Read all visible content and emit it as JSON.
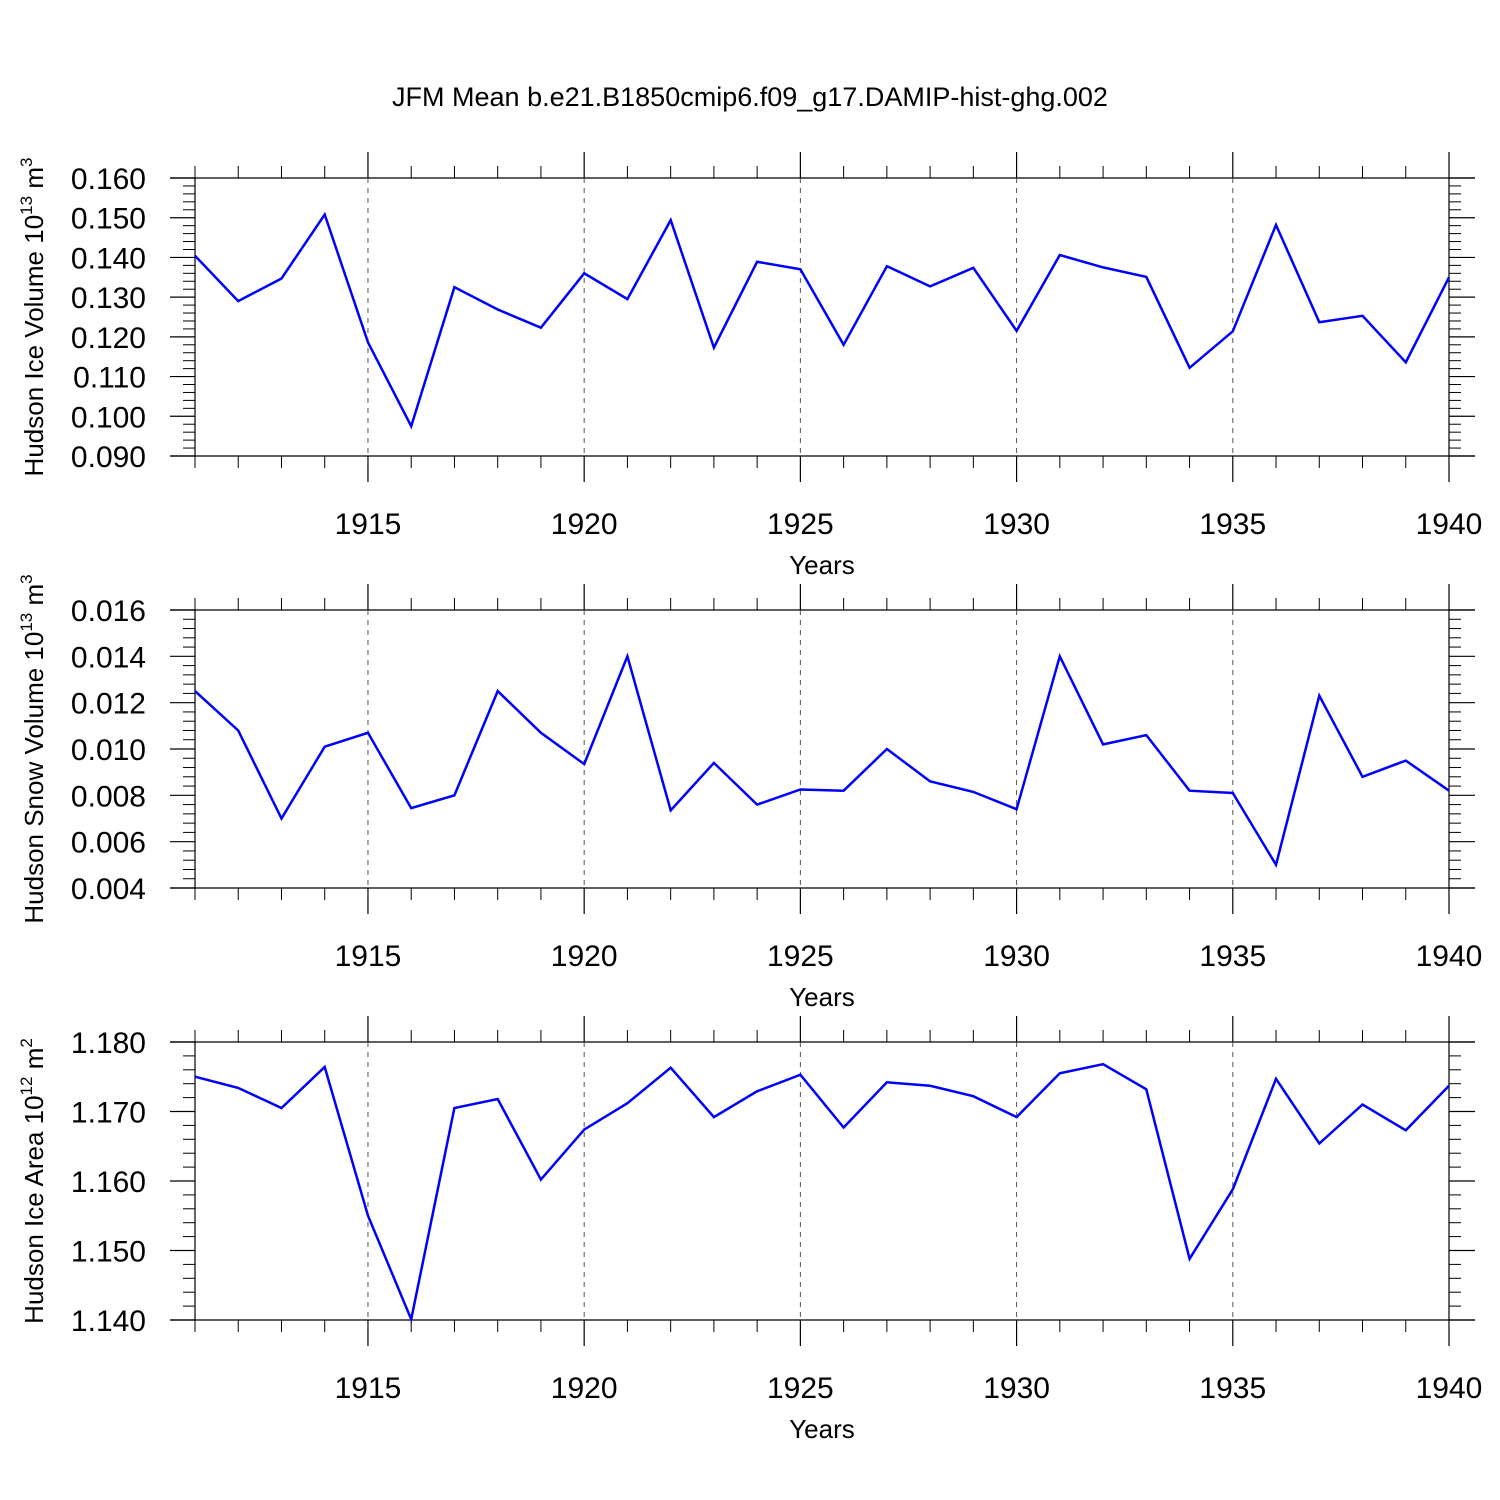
{
  "title": "JFM Mean b.e21.B1850cmip6.f09_g17.DAMIP-hist-ghg.002",
  "colors": {
    "line": "#0000ff",
    "axis": "#000000",
    "grid": "#555555",
    "background": "#ffffff"
  },
  "chart_data": [
    {
      "type": "line",
      "title": "",
      "xlabel": "Years",
      "ylabel": "Hudson Ice Volume 10^13 m^3",
      "ylabel_text": "Hudson Ice Volume 10",
      "ylabel_exp": "13",
      "ylabel_unit": "m",
      "ylabel_unit_exp": "3",
      "xlim": [
        1911,
        1940
      ],
      "ylim": [
        0.09,
        0.16
      ],
      "x_ticks": [
        "1915",
        "1920",
        "1925",
        "1930",
        "1935",
        "1940"
      ],
      "y_ticks": [
        "0.090",
        "0.100",
        "0.110",
        "0.120",
        "0.130",
        "0.140",
        "0.150",
        "0.160"
      ],
      "grid": "vertical dashed at major x ticks",
      "x": [
        1911,
        1912,
        1913,
        1914,
        1915,
        1916,
        1917,
        1918,
        1919,
        1920,
        1921,
        1922,
        1923,
        1924,
        1925,
        1926,
        1927,
        1928,
        1929,
        1930,
        1931,
        1932,
        1933,
        1934,
        1935,
        1936,
        1937,
        1938,
        1939,
        1940
      ],
      "series": [
        {
          "values": [
            0.1404,
            0.129,
            0.1347,
            0.1508,
            0.1186,
            0.0975,
            0.1325,
            0.1269,
            0.1223,
            0.136,
            0.1295,
            0.1494,
            0.1173,
            0.1389,
            0.137,
            0.118,
            0.1378,
            0.1327,
            0.1374,
            0.1215,
            0.1406,
            0.1375,
            0.1351,
            0.1122,
            0.1214,
            0.1482,
            0.1237,
            0.1253,
            0.1136,
            0.135
          ]
        }
      ]
    },
    {
      "type": "line",
      "title": "",
      "xlabel": "Years",
      "ylabel": "Hudson Snow Volume 10^13 m^3",
      "ylabel_text": "Hudson Snow Volume 10",
      "ylabel_exp": "13",
      "ylabel_unit": "m",
      "ylabel_unit_exp": "3",
      "xlim": [
        1911,
        1940
      ],
      "ylim": [
        0.004,
        0.016
      ],
      "x_ticks": [
        "1915",
        "1920",
        "1925",
        "1930",
        "1935",
        "1940"
      ],
      "y_ticks": [
        "0.004",
        "0.006",
        "0.008",
        "0.010",
        "0.012",
        "0.014",
        "0.016"
      ],
      "grid": "vertical dashed at major x ticks",
      "x": [
        1911,
        1912,
        1913,
        1914,
        1915,
        1916,
        1917,
        1918,
        1919,
        1920,
        1921,
        1922,
        1923,
        1924,
        1925,
        1926,
        1927,
        1928,
        1929,
        1930,
        1931,
        1932,
        1933,
        1934,
        1935,
        1936,
        1937,
        1938,
        1939,
        1940
      ],
      "series": [
        {
          "values": [
            0.0125,
            0.0108,
            0.007,
            0.0101,
            0.0107,
            0.00745,
            0.008,
            0.0125,
            0.0107,
            0.00935,
            0.014,
            0.00735,
            0.0094,
            0.0076,
            0.00825,
            0.0082,
            0.01,
            0.0086,
            0.00815,
            0.0074,
            0.014,
            0.0102,
            0.0106,
            0.0082,
            0.0081,
            0.005,
            0.0123,
            0.0088,
            0.0095,
            0.0082
          ]
        }
      ]
    },
    {
      "type": "line",
      "title": "",
      "xlabel": "Years",
      "ylabel": "Hudson Ice Area 10^12 m^2",
      "ylabel_text": "Hudson Ice Area 10",
      "ylabel_exp": "12",
      "ylabel_unit": "m",
      "ylabel_unit_exp": "2",
      "xlim": [
        1911,
        1940
      ],
      "ylim": [
        1.14,
        1.18
      ],
      "x_ticks": [
        "1915",
        "1920",
        "1925",
        "1930",
        "1935",
        "1940"
      ],
      "y_ticks": [
        "1.140",
        "1.150",
        "1.160",
        "1.170",
        "1.180"
      ],
      "grid": "vertical dashed at major x ticks",
      "x": [
        1911,
        1912,
        1913,
        1914,
        1915,
        1916,
        1917,
        1918,
        1919,
        1920,
        1921,
        1922,
        1923,
        1924,
        1925,
        1926,
        1927,
        1928,
        1929,
        1930,
        1931,
        1932,
        1933,
        1934,
        1935,
        1936,
        1937,
        1938,
        1939,
        1940
      ],
      "series": [
        {
          "values": [
            1.175,
            1.1734,
            1.1705,
            1.1764,
            1.155,
            1.1401,
            1.1705,
            1.1718,
            1.1602,
            1.1674,
            1.1712,
            1.1763,
            1.1692,
            1.1729,
            1.1753,
            1.1677,
            1.1742,
            1.1737,
            1.1722,
            1.1692,
            1.1755,
            1.1768,
            1.1732,
            1.1488,
            1.1588,
            1.1747,
            1.1654,
            1.171,
            1.1673,
            1.1737
          ]
        }
      ]
    }
  ]
}
